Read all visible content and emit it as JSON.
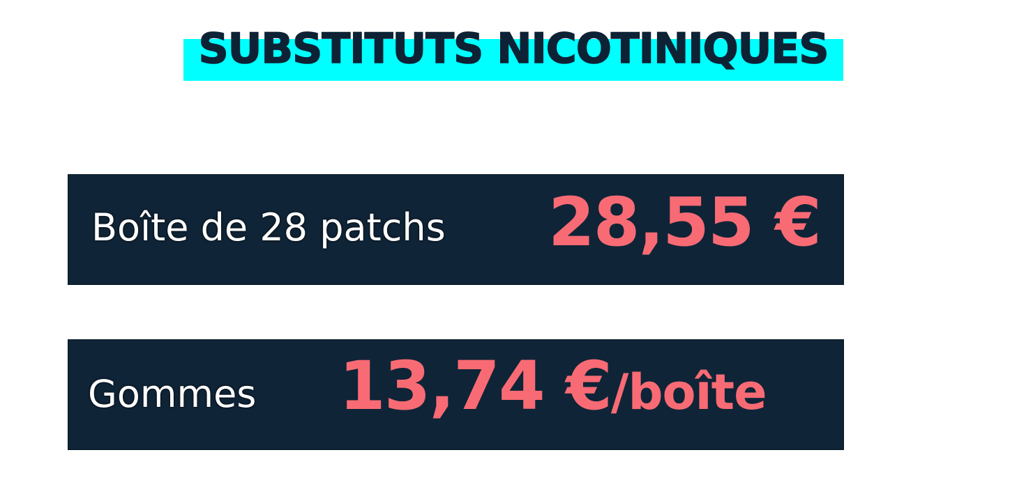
{
  "title": "SUBSTITUTS NICOTINIQUES",
  "colors": {
    "title_band": "#00ffff",
    "box_bg": "#0f2437",
    "price": "#f96b74",
    "label": "#ffffff"
  },
  "items": [
    {
      "label": "Boîte de 28 patchs",
      "price": "28,55 €",
      "unit": ""
    },
    {
      "label": "Gommes",
      "price": "13,74 €",
      "unit": "/boîte"
    }
  ]
}
